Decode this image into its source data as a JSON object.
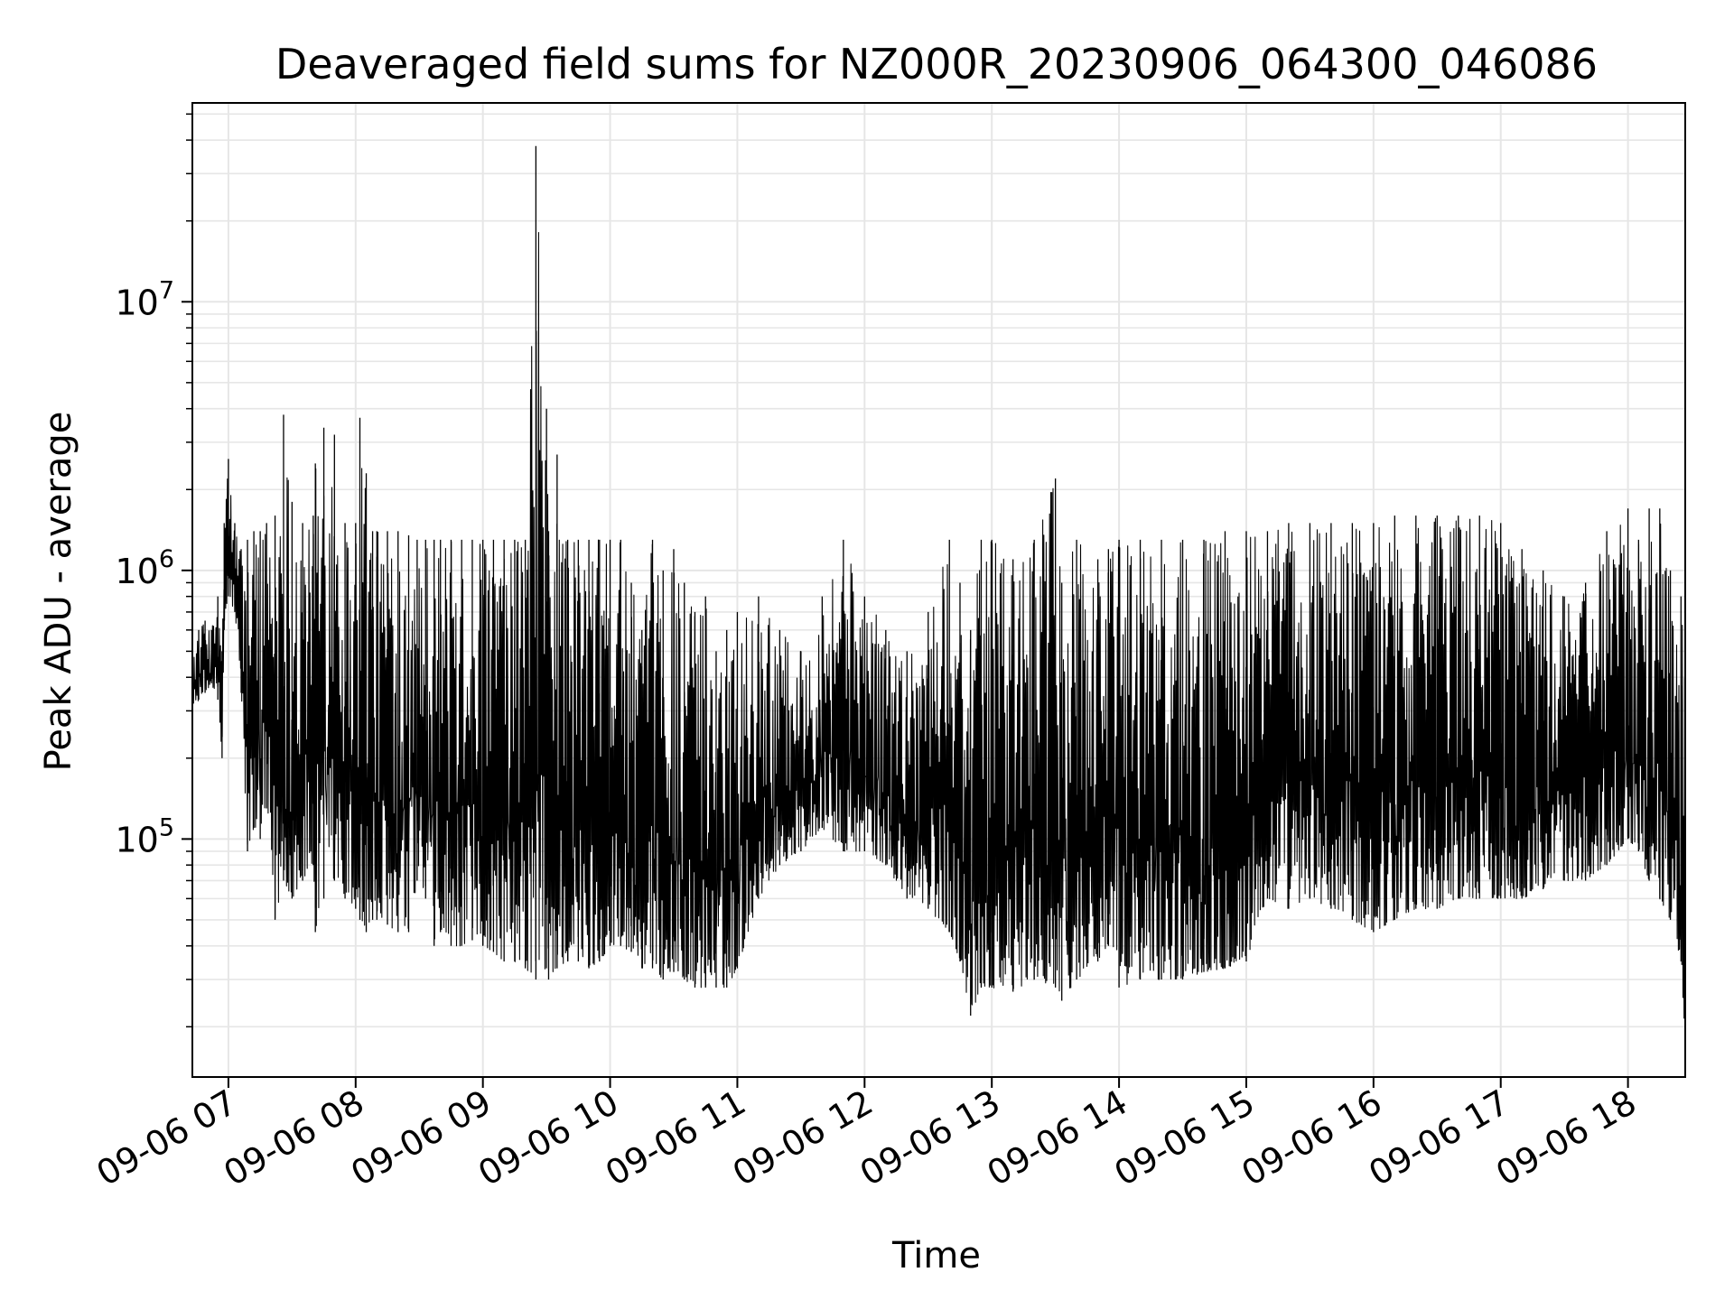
{
  "chart_data": {
    "type": "line",
    "title": "Deaveraged field sums for NZ000R_20230906_064300_046086",
    "xlabel": "Time",
    "ylabel": "Peak ADU - average",
    "yscale": "log",
    "ylim": [
      13000,
      55000000
    ],
    "xlim": [
      "2023-09-06 06:43",
      "2023-09-06 18:27"
    ],
    "grid": true,
    "legend": "none",
    "line_color": "#000000",
    "grid_color": "#e6e6e6",
    "x_ticks": [
      {
        "value": "2023-09-06 07:00",
        "label": "09-06 07"
      },
      {
        "value": "2023-09-06 08:00",
        "label": "09-06 08"
      },
      {
        "value": "2023-09-06 09:00",
        "label": "09-06 09"
      },
      {
        "value": "2023-09-06 10:00",
        "label": "09-06 10"
      },
      {
        "value": "2023-09-06 11:00",
        "label": "09-06 11"
      },
      {
        "value": "2023-09-06 12:00",
        "label": "09-06 12"
      },
      {
        "value": "2023-09-06 13:00",
        "label": "09-06 13"
      },
      {
        "value": "2023-09-06 14:00",
        "label": "09-06 14"
      },
      {
        "value": "2023-09-06 15:00",
        "label": "09-06 15"
      },
      {
        "value": "2023-09-06 16:00",
        "label": "09-06 16"
      },
      {
        "value": "2023-09-06 17:00",
        "label": "09-06 17"
      },
      {
        "value": "2023-09-06 18:00",
        "label": "09-06 18"
      }
    ],
    "y_ticks": [
      {
        "value": 100000,
        "base": "10",
        "exp": "5"
      },
      {
        "value": 1000000,
        "base": "10",
        "exp": "6"
      },
      {
        "value": 10000000,
        "base": "10",
        "exp": "7"
      }
    ],
    "series": [
      {
        "x": [
          "2023-09-06 06:43",
          "2023-09-06 06:46",
          "2023-09-06 06:49",
          "2023-09-06 06:52",
          "2023-09-06 06:55",
          "2023-09-06 06:57",
          "2023-09-06 06:58",
          "2023-09-06 07:00",
          "2023-09-06 07:03",
          "2023-09-06 07:06",
          "2023-09-06 07:09",
          "2023-09-06 07:12",
          "2023-09-06 07:15",
          "2023-09-06 07:18",
          "2023-09-06 07:22",
          "2023-09-06 07:26",
          "2023-09-06 07:30",
          "2023-09-06 07:35",
          "2023-09-06 07:40",
          "2023-09-06 07:41",
          "2023-09-06 07:45",
          "2023-09-06 07:50",
          "2023-09-06 07:55",
          "2023-09-06 08:00",
          "2023-09-06 08:02",
          "2023-09-06 08:05",
          "2023-09-06 08:08",
          "2023-09-06 08:10",
          "2023-09-06 08:15",
          "2023-09-06 08:20",
          "2023-09-06 08:25",
          "2023-09-06 08:29",
          "2023-09-06 08:33",
          "2023-09-06 08:37",
          "2023-09-06 08:40",
          "2023-09-06 08:45",
          "2023-09-06 08:50",
          "2023-09-06 08:55",
          "2023-09-06 09:00",
          "2023-09-06 09:05",
          "2023-09-06 09:10",
          "2023-09-06 09:15",
          "2023-09-06 09:20",
          "2023-09-06 09:25",
          "2023-09-06 09:30",
          "2023-09-06 09:31",
          "2023-09-06 09:35",
          "2023-09-06 09:40",
          "2023-09-06 09:45",
          "2023-09-06 09:50",
          "2023-09-06 09:55",
          "2023-09-06 10:00",
          "2023-09-06 10:05",
          "2023-09-06 10:10",
          "2023-09-06 10:15",
          "2023-09-06 10:20",
          "2023-09-06 10:25",
          "2023-09-06 10:30",
          "2023-09-06 10:35",
          "2023-09-06 10:40",
          "2023-09-06 10:45",
          "2023-09-06 10:50",
          "2023-09-06 10:55",
          "2023-09-06 11:00",
          "2023-09-06 11:10",
          "2023-09-06 11:20",
          "2023-09-06 11:30",
          "2023-09-06 11:40",
          "2023-09-06 11:50",
          "2023-09-06 12:00",
          "2023-09-06 12:10",
          "2023-09-06 12:20",
          "2023-09-06 12:30",
          "2023-09-06 12:40",
          "2023-09-06 12:45",
          "2023-09-06 12:50",
          "2023-09-06 12:55",
          "2023-09-06 13:00",
          "2023-09-06 13:10",
          "2023-09-06 13:20",
          "2023-09-06 13:30",
          "2023-09-06 13:33",
          "2023-09-06 13:40",
          "2023-09-06 13:50",
          "2023-09-06 13:55",
          "2023-09-06 14:00",
          "2023-09-06 14:10",
          "2023-09-06 14:20",
          "2023-09-06 14:30",
          "2023-09-06 14:40",
          "2023-09-06 14:50",
          "2023-09-06 15:00",
          "2023-09-06 15:10",
          "2023-09-06 15:20",
          "2023-09-06 15:30",
          "2023-09-06 15:40",
          "2023-09-06 15:50",
          "2023-09-06 16:00",
          "2023-09-06 16:10",
          "2023-09-06 16:20",
          "2023-09-06 16:30",
          "2023-09-06 16:40",
          "2023-09-06 16:50",
          "2023-09-06 17:00",
          "2023-09-06 17:10",
          "2023-09-06 17:20",
          "2023-09-06 17:30",
          "2023-09-06 17:40",
          "2023-09-06 17:50",
          "2023-09-06 18:00",
          "2023-09-06 18:05",
          "2023-09-06 18:10",
          "2023-09-06 18:15",
          "2023-09-06 18:20",
          "2023-09-06 18:25",
          "2023-09-06 18:27"
        ],
        "low": [
          300000,
          330000,
          350000,
          380000,
          330000,
          200000,
          600000,
          800000,
          700000,
          350000,
          90000,
          110000,
          100000,
          130000,
          50000,
          70000,
          60000,
          70000,
          80000,
          45000,
          60000,
          70000,
          60000,
          55000,
          50000,
          45000,
          50000,
          50000,
          48000,
          45000,
          45000,
          70000,
          60000,
          40000,
          45000,
          40000,
          40000,
          42000,
          40000,
          38000,
          35000,
          35000,
          33000,
          30000,
          33000,
          30000,
          33000,
          35000,
          35000,
          33000,
          35000,
          40000,
          40000,
          38000,
          33000,
          33000,
          30000,
          32000,
          30000,
          28000,
          28000,
          28000,
          28000,
          33000,
          60000,
          80000,
          90000,
          110000,
          90000,
          90000,
          80000,
          60000,
          55000,
          45000,
          35000,
          22000,
          28000,
          28000,
          27000,
          30000,
          28000,
          25000,
          30000,
          35000,
          40000,
          28000,
          30000,
          30000,
          30000,
          32000,
          33000,
          35000,
          60000,
          55000,
          60000,
          55000,
          50000,
          45000,
          50000,
          55000,
          55000,
          60000,
          60000,
          60000,
          60000,
          65000,
          70000,
          70000,
          80000,
          100000,
          90000,
          70000,
          60000,
          50000,
          35000,
          17000
        ],
        "high": [
          500000,
          600000,
          650000,
          600000,
          800000,
          500000,
          1500000,
          2600000,
          1500000,
          1200000,
          1300000,
          1400000,
          1400000,
          1500000,
          1600000,
          3800000,
          1800000,
          1500000,
          1600000,
          2500000,
          3400000,
          3200000,
          1500000,
          1500000,
          3700000,
          2300000,
          1400000,
          1400000,
          1400000,
          1400000,
          1350000,
          1300000,
          1300000,
          1300000,
          1300000,
          1300000,
          1300000,
          1300000,
          1300000,
          1300000,
          1300000,
          1300000,
          1300000,
          38000000,
          4000000,
          1400000,
          2700000,
          1300000,
          1300000,
          1300000,
          1300000,
          1300000,
          1300000,
          900000,
          600000,
          1300000,
          1000000,
          1200000,
          900000,
          700000,
          800000,
          500000,
          600000,
          700000,
          800000,
          600000,
          500000,
          800000,
          1300000,
          800000,
          600000,
          500000,
          700000,
          1300000,
          900000,
          600000,
          1300000,
          1300000,
          1100000,
          1300000,
          2200000,
          900000,
          1300000,
          1100000,
          1200000,
          1300000,
          1300000,
          1300000,
          1300000,
          1300000,
          1400000,
          1400000,
          1400000,
          1500000,
          1500000,
          1500000,
          1500000,
          1500000,
          1600000,
          1600000,
          1600000,
          1600000,
          1600000,
          1500000,
          1200000,
          1000000,
          800000,
          900000,
          1400000,
          1700000,
          1300000,
          1700000,
          1700000,
          1000000,
          800000,
          400000
        ]
      }
    ]
  }
}
